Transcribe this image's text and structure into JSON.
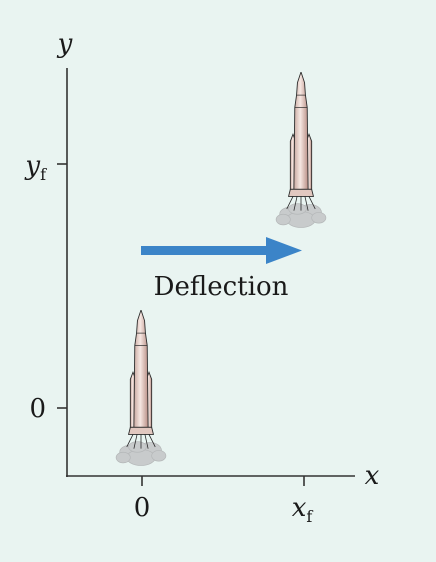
{
  "axes": {
    "x_label": "x",
    "y_label": "y",
    "x_ticks": [
      {
        "main": "0",
        "sub": ""
      },
      {
        "main": "x",
        "sub": "f"
      }
    ],
    "y_ticks": [
      {
        "main": "y",
        "sub": "f"
      },
      {
        "main": "0",
        "sub": ""
      }
    ]
  },
  "arrow": {
    "label": "Deflection",
    "color": "#3b84c8"
  },
  "rockets": {
    "body_color": "#ecd6cf",
    "outline_color": "#2a2a2a",
    "smoke_color": "#c8cbcc"
  },
  "colors": {
    "background": "#e9f4f1",
    "axis": "#333333"
  }
}
